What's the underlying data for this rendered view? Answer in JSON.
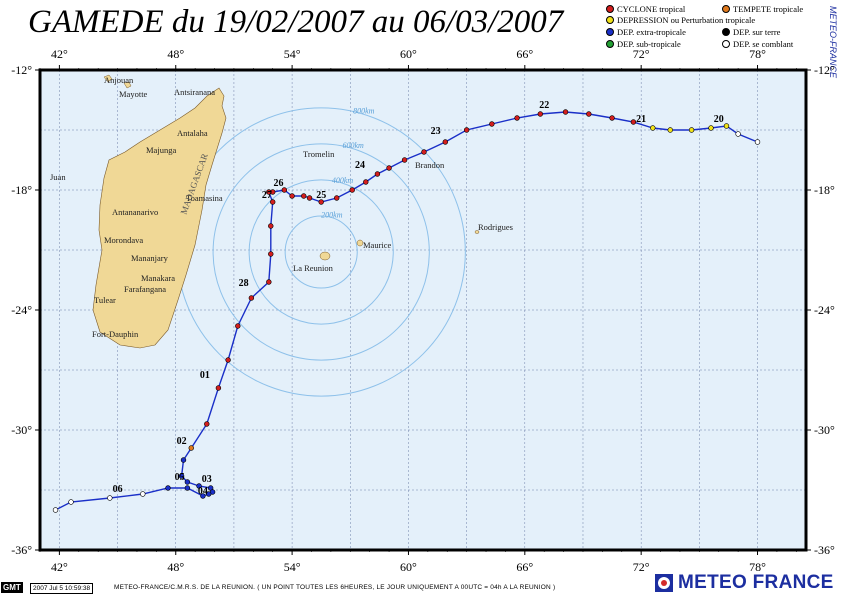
{
  "title": "GAMEDE du 19/02/2007 au 06/03/2007",
  "side_label": "METEO-FRANCE",
  "legend": [
    {
      "label": "CYCLONE tropical",
      "color": "#d21e1e"
    },
    {
      "label": "TEMPETE tropicale",
      "color": "#e07a1f"
    },
    {
      "label": "DEPRESSION ou Perturbation tropicale",
      "color": "#f1e21a"
    },
    {
      "label": "DEP. extra-tropicale",
      "color": "#1a2fc8"
    },
    {
      "label": "DEP. sur terre",
      "color": "#000000"
    },
    {
      "label": "DEP. sub-tropicale",
      "color": "#23a034"
    },
    {
      "label": "DEP. se comblant",
      "color": "#ffffff"
    }
  ],
  "map": {
    "lon_ticks": [
      "42°",
      "48°",
      "54°",
      "60°",
      "66°",
      "72°",
      "78°"
    ],
    "lat_ticks": [
      "-12°",
      "-18°",
      "-24°",
      "-30°",
      "-36°"
    ],
    "lon_range": [
      41,
      80.5
    ],
    "lat_range": [
      -12,
      -36
    ],
    "ocean_color": "#e4f0fa",
    "land_color": "#f0d896",
    "range_rings": [
      "200km",
      "400km",
      "600km",
      "800km"
    ],
    "places": [
      "Anjouan",
      "Mayotte",
      "Antsiranana",
      "Antalaha",
      "Majunga",
      "Juan",
      "Toamasina",
      "Antananarivo",
      "Morondava",
      "Mananjary",
      "Manakara",
      "Farafangana",
      "Tulear",
      "Fort-Dauphin",
      "Tromelin",
      "Brandon",
      "Maurice",
      "Rodrigues",
      "La Reunion",
      "MADAGASCAR"
    ]
  },
  "track": {
    "day_labels": [
      "20",
      "21",
      "22",
      "23",
      "24",
      "25",
      "26",
      "27",
      "28",
      "01",
      "02",
      "03",
      "04",
      "05",
      "06"
    ]
  },
  "footer": {
    "gmt": "GMT",
    "timestamp": "2007 Jul 5 10:59:38",
    "credit": "METEO-FRANCE/C.M.R.S. DE LA REUNION. ( UN POINT TOUTES LES 6HEURES, LE JOUR UNIQUEMENT A 00UTC = 04h A LA REUNION )"
  },
  "logo": "METEO FRANCE"
}
